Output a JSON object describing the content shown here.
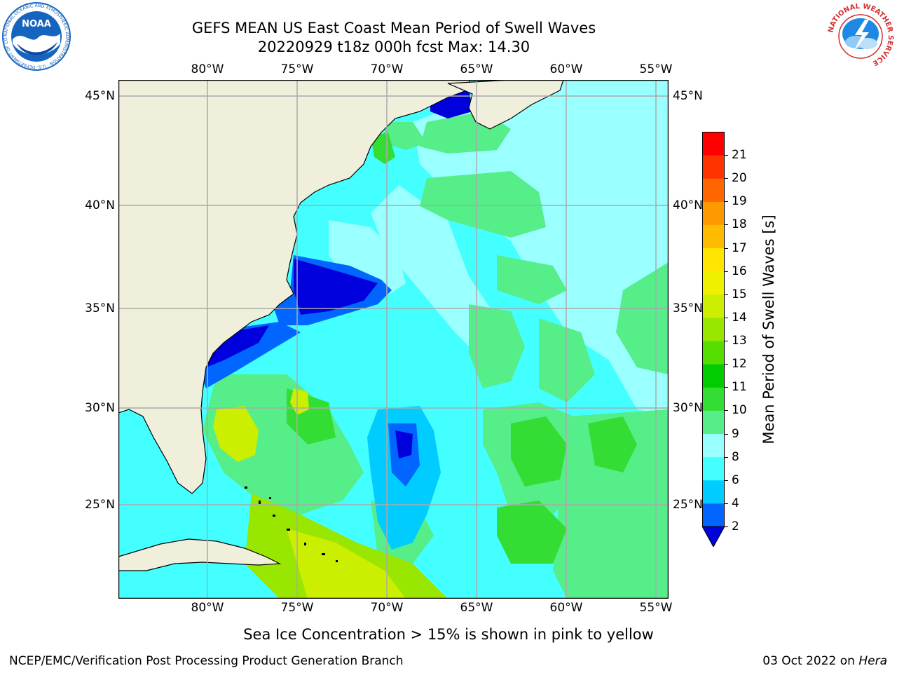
{
  "header": {
    "title_line1": "GEFS MEAN US East Coast Mean Period of Swell Waves",
    "title_line2": "20220929 t18z 000h fcst   Max: 14.30"
  },
  "logos": {
    "left": {
      "text": "NOAA",
      "ring_text": "NATIONAL OCEANIC AND ATMOSPHERIC ADMINISTRATION · U.S. DEPARTMENT OF COMMERCE",
      "color": "#1565c0"
    },
    "right": {
      "ring_text": "NATIONAL WEATHER SERVICE",
      "color": "#d32f2f"
    }
  },
  "map": {
    "lon_labels": [
      "80°W",
      "75°W",
      "70°W",
      "65°W",
      "60°W",
      "55°W"
    ],
    "lat_labels": [
      "45°N",
      "40°N",
      "35°N",
      "30°N",
      "25°N"
    ],
    "land_color": "#efefdc",
    "grid_color": "#aaaaaa"
  },
  "colorbar": {
    "label": "Mean Period of Swell Waves [s]",
    "ticks": [
      "2",
      "4",
      "6",
      "8",
      "9",
      "10",
      "11",
      "12",
      "13",
      "14",
      "15",
      "16",
      "17",
      "18",
      "19",
      "20",
      "21"
    ],
    "colors": [
      "#0066ff",
      "#00ccff",
      "#44ffff",
      "#99ffff",
      "#55ee88",
      "#33dd33",
      "#00cc00",
      "#55dd00",
      "#99e600",
      "#ccee00",
      "#eef000",
      "#ffe600",
      "#ffbb00",
      "#ff9900",
      "#ff6600",
      "#ff3300",
      "#ff0000"
    ],
    "under_color": "#0000dd"
  },
  "note": "Sea Ice Concentration > 15% is shown in pink to yellow",
  "footer": {
    "left": "NCEP/EMC/Verification Post Processing Product Generation Branch",
    "right_prefix": "03 Oct 2022 on ",
    "right_host": "Hera"
  }
}
